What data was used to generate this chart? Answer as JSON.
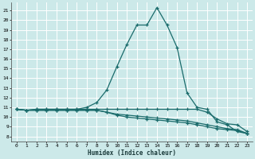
{
  "xlabel": "Humidex (Indice chaleur)",
  "ylabel": "",
  "bg_color": "#cce9e9",
  "grid_color": "#ffffff",
  "line_color": "#1a6b6b",
  "xlim": [
    -0.5,
    23.5
  ],
  "ylim": [
    7.5,
    21.8
  ],
  "yticks": [
    8,
    9,
    10,
    11,
    12,
    13,
    14,
    15,
    16,
    17,
    18,
    19,
    20,
    21
  ],
  "xticks": [
    0,
    1,
    2,
    3,
    4,
    5,
    6,
    7,
    8,
    9,
    10,
    11,
    12,
    13,
    14,
    15,
    16,
    17,
    18,
    19,
    20,
    21,
    22,
    23
  ],
  "line1_x": [
    0,
    1,
    2,
    3,
    4,
    5,
    6,
    7,
    8,
    9,
    10,
    11,
    12,
    13,
    14,
    15,
    16,
    17,
    18,
    19,
    20,
    21,
    22,
    23
  ],
  "line1_y": [
    10.8,
    10.7,
    10.8,
    10.8,
    10.8,
    10.8,
    10.8,
    11.0,
    11.5,
    12.8,
    15.2,
    17.5,
    19.5,
    19.5,
    21.3,
    19.5,
    17.2,
    12.5,
    11.0,
    10.8,
    9.5,
    9.2,
    8.5,
    8.3
  ],
  "line2_x": [
    0,
    1,
    2,
    3,
    4,
    5,
    6,
    7,
    8,
    9,
    10,
    11,
    12,
    13,
    14,
    15,
    16,
    17,
    18,
    19,
    20,
    21,
    22,
    23
  ],
  "line2_y": [
    10.8,
    10.7,
    10.8,
    10.8,
    10.8,
    10.8,
    10.8,
    10.8,
    10.8,
    10.8,
    10.8,
    10.8,
    10.8,
    10.8,
    10.8,
    10.8,
    10.8,
    10.8,
    10.8,
    10.5,
    9.8,
    9.3,
    9.2,
    8.5
  ],
  "line3_x": [
    0,
    1,
    2,
    3,
    4,
    5,
    6,
    7,
    8,
    9,
    10,
    11,
    12,
    13,
    14,
    15,
    16,
    17,
    18,
    19,
    20,
    21,
    22,
    23
  ],
  "line3_y": [
    10.8,
    10.7,
    10.7,
    10.7,
    10.7,
    10.7,
    10.7,
    10.7,
    10.7,
    10.5,
    10.3,
    10.2,
    10.1,
    10.0,
    9.9,
    9.8,
    9.7,
    9.6,
    9.4,
    9.2,
    9.0,
    8.8,
    8.7,
    8.3
  ],
  "line4_x": [
    0,
    1,
    2,
    3,
    4,
    5,
    6,
    7,
    8,
    9,
    10,
    11,
    12,
    13,
    14,
    15,
    16,
    17,
    18,
    19,
    20,
    21,
    22,
    23
  ],
  "line4_y": [
    10.8,
    10.7,
    10.7,
    10.7,
    10.7,
    10.7,
    10.7,
    10.7,
    10.7,
    10.5,
    10.2,
    10.0,
    9.9,
    9.8,
    9.7,
    9.6,
    9.5,
    9.4,
    9.2,
    9.0,
    8.8,
    8.7,
    8.6,
    8.3
  ]
}
